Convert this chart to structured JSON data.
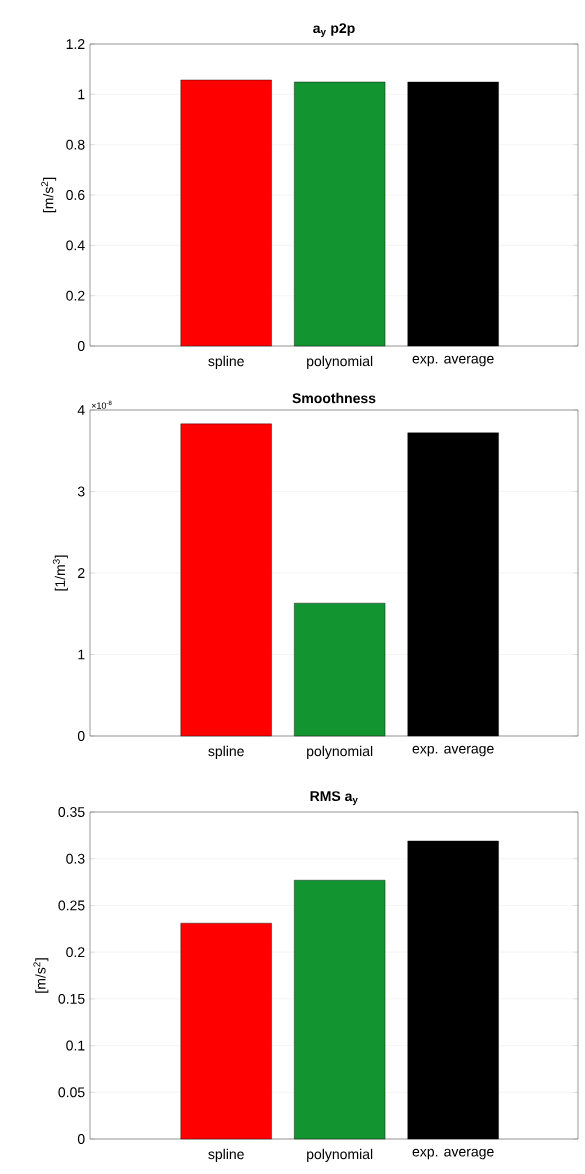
{
  "chart_data": [
    {
      "type": "bar",
      "title": "a$_{y}$ p2p",
      "ylabel": "[m/s$^{2}$]",
      "categories": [
        "spline",
        "polynomial",
        "exp. average"
      ],
      "values": [
        1.057,
        1.049,
        1.049
      ],
      "colors": [
        "#ff0000",
        "#129430",
        "#000000"
      ],
      "ylim": [
        0,
        1.2
      ],
      "yticks": [
        0,
        0.2,
        0.4,
        0.6,
        0.8,
        1,
        1.2
      ],
      "grid": "y"
    },
    {
      "type": "bar",
      "title": "Smoothness",
      "ylabel": "[1/m$^{3}$]",
      "categories": [
        "spline",
        "polynomial",
        "exp. average"
      ],
      "values": [
        3.83,
        1.63,
        3.72
      ],
      "colors": [
        "#ff0000",
        "#129430",
        "#000000"
      ],
      "ylim": [
        0,
        4
      ],
      "yticks": [
        0,
        1,
        2,
        3,
        4
      ],
      "grid": "y",
      "annotations": [
        "×10$^{-8}$"
      ]
    },
    {
      "type": "bar",
      "title": "RMS a$_{y}$",
      "ylabel": "[m/s$^{2}$]",
      "categories": [
        "spline",
        "polynomial",
        "exp. average"
      ],
      "values": [
        0.231,
        0.277,
        0.319
      ],
      "colors": [
        "#ff0000",
        "#129430",
        "#000000"
      ],
      "ylim": [
        0,
        0.35
      ],
      "yticks": [
        0,
        0.05,
        0.1,
        0.15,
        0.2,
        0.25,
        0.3,
        0.35
      ],
      "grid": "y"
    }
  ]
}
